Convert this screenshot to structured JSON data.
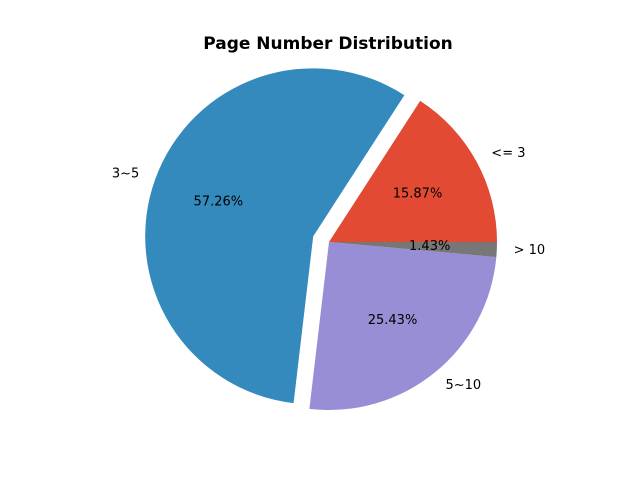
{
  "chart_data": {
    "type": "pie",
    "title": "Page Number Distribution",
    "categories": [
      "<= 3",
      "3~5",
      "5~10",
      "> 10"
    ],
    "values": [
      15.87,
      57.26,
      25.43,
      1.43
    ],
    "percent_labels": [
      "15.87%",
      "57.26%",
      "25.43%",
      "1.43%"
    ],
    "colors": [
      "#E24A33",
      "#348ABD",
      "#988ED5",
      "#777777"
    ],
    "exploded": [
      "3~5"
    ],
    "start_angle_deg": 0,
    "direction": "counterclockwise",
    "legend": "none"
  }
}
